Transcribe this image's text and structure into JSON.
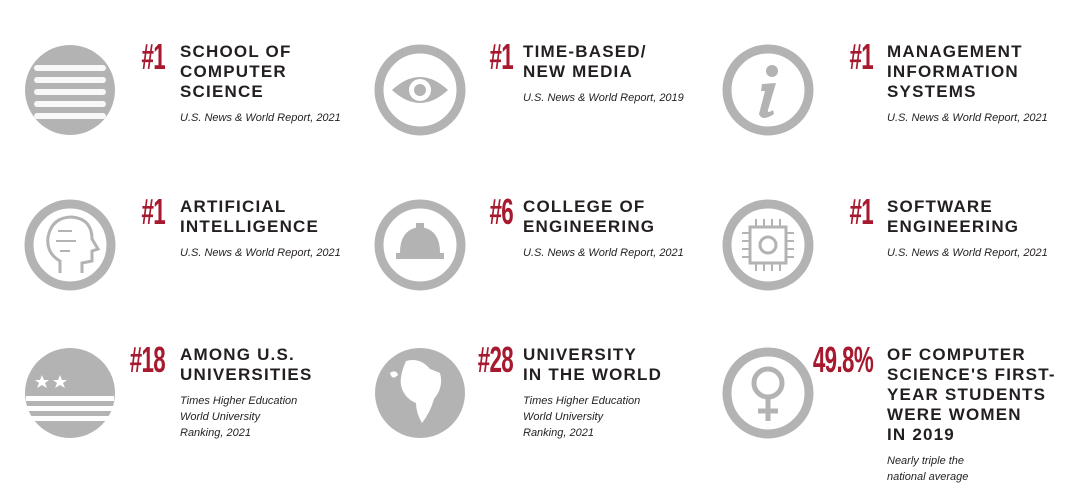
{
  "items": [
    {
      "rank": "#1",
      "title": [
        "SCHOOL OF",
        "COMPUTER",
        "SCIENCE"
      ],
      "source": [
        "U.S. News & World Report, 2021"
      ]
    },
    {
      "rank": "#1",
      "title": [
        "TIME-BASED/",
        "NEW MEDIA"
      ],
      "source": [
        "U.S. News & World Report, 2019"
      ]
    },
    {
      "rank": "#1",
      "title": [
        "MANAGEMENT",
        "INFORMATION",
        "SYSTEMS"
      ],
      "source": [
        "U.S. News & World Report, 2021"
      ]
    },
    {
      "rank": "#1",
      "title": [
        "ARTIFICIAL",
        "INTELLIGENCE"
      ],
      "source": [
        "U.S. News & World Report, 2021"
      ]
    },
    {
      "rank": "#6",
      "title": [
        "COLLEGE OF",
        "ENGINEERING"
      ],
      "source": [
        "U.S. News & World Report, 2021"
      ]
    },
    {
      "rank": "#1",
      "title": [
        "SOFTWARE",
        "ENGINEERING"
      ],
      "source": [
        "U.S. News & World Report, 2021"
      ]
    },
    {
      "rank": "#18",
      "title": [
        "AMONG U.S.",
        "UNIVERSITIES"
      ],
      "source": [
        "Times Higher Education",
        "World University",
        "Ranking, 2021"
      ]
    },
    {
      "rank": "#28",
      "title": [
        "UNIVERSITY",
        "IN THE WORLD"
      ],
      "source": [
        "Times Higher Education",
        "World University",
        "Ranking, 2021"
      ]
    },
    {
      "rank": "49.8%",
      "title": [
        "OF COMPUTER",
        "SCIENCE'S FIRST-",
        "YEAR STUDENTS",
        "WERE WOMEN",
        "IN 2019"
      ],
      "source": [
        "Nearly triple the",
        "national average"
      ]
    }
  ]
}
